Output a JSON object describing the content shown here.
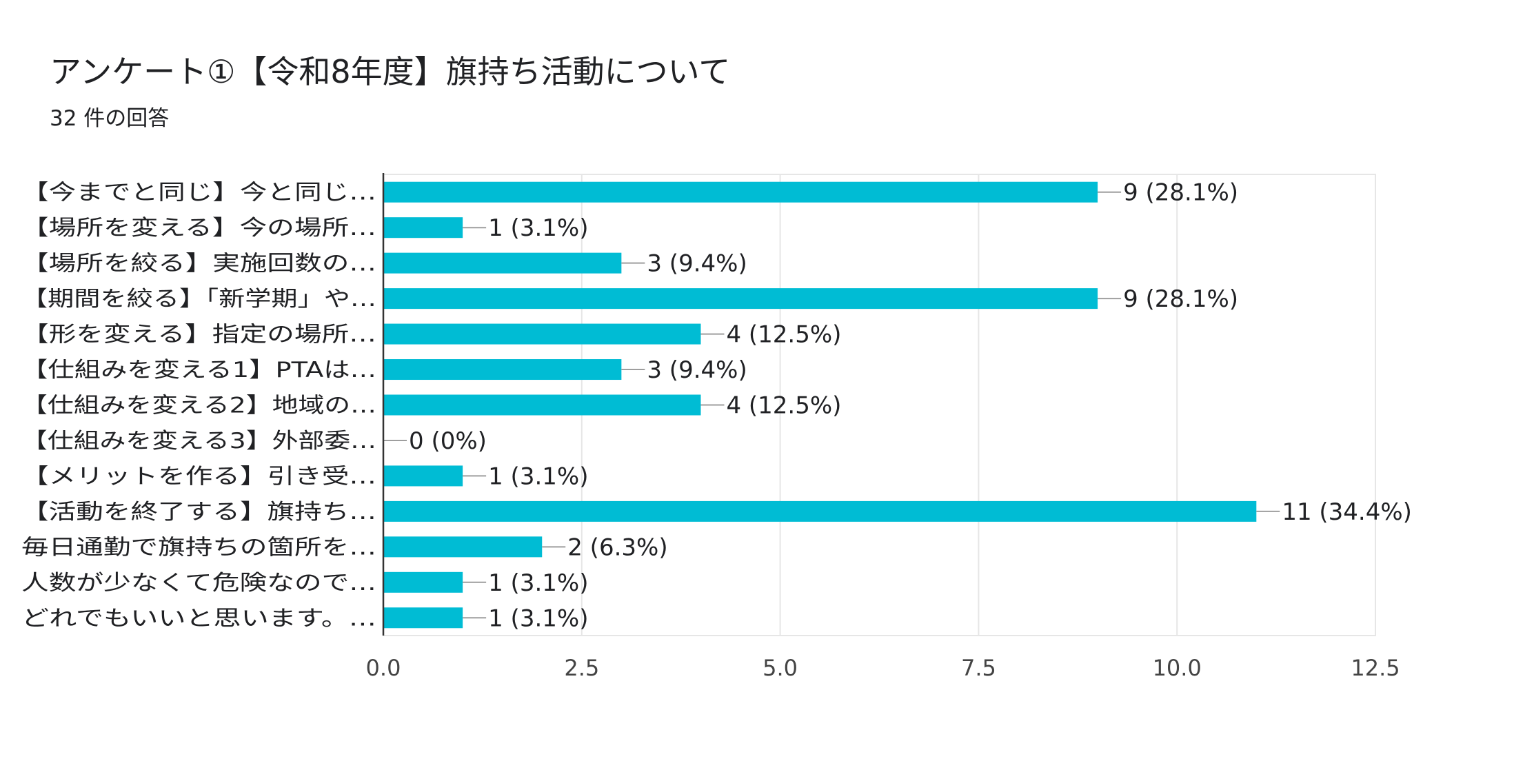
{
  "title": "アンケート①【令和8年度】旗持ち活動について",
  "subtitle": "32 件の回答",
  "colors": {
    "bar": "#00bcd4",
    "grid": "#e6e6e6",
    "axis": "#333333",
    "connector": "#9e9e9e"
  },
  "chart_data": {
    "type": "bar",
    "orientation": "horizontal",
    "title": "アンケート①【令和8年度】旗持ち活動について",
    "xlabel": "",
    "ylabel": "",
    "xlim": [
      0,
      12.5
    ],
    "ticks": [
      0,
      2.5,
      5,
      7.5,
      10,
      12.5
    ],
    "tick_labels": [
      "0.0",
      "2.5",
      "5.0",
      "7.5",
      "10.0",
      "12.5"
    ],
    "categories": [
      "【今までと同じ】今と同じ…",
      "【場所を変える】今の場所…",
      "【場所を絞る】実施回数の…",
      "【期間を絞る】「新学期」や…",
      "【形を変える】指定の場所…",
      "【仕組みを変える1】PTAは…",
      "【仕組みを変える2】地域の…",
      "【仕組みを変える3】外部委…",
      "【メリットを作る】引き受…",
      "【活動を終了する】旗持ち…",
      "毎日通勤で旗持ちの箇所を…",
      "人数が少なくて危険なので…",
      "どれでもいいと思います。…"
    ],
    "values": [
      9,
      1,
      3,
      9,
      4,
      3,
      4,
      0,
      1,
      11,
      2,
      1,
      1
    ],
    "data_labels": [
      "9 (28.1%)",
      "1 (3.1%)",
      "3 (9.4%)",
      "9 (28.1%)",
      "4 (12.5%)",
      "3 (9.4%)",
      "4 (12.5%)",
      "0 (0%)",
      "1 (3.1%)",
      "11 (34.4%)",
      "2 (6.3%)",
      "1 (3.1%)",
      "1 (3.1%)"
    ]
  }
}
